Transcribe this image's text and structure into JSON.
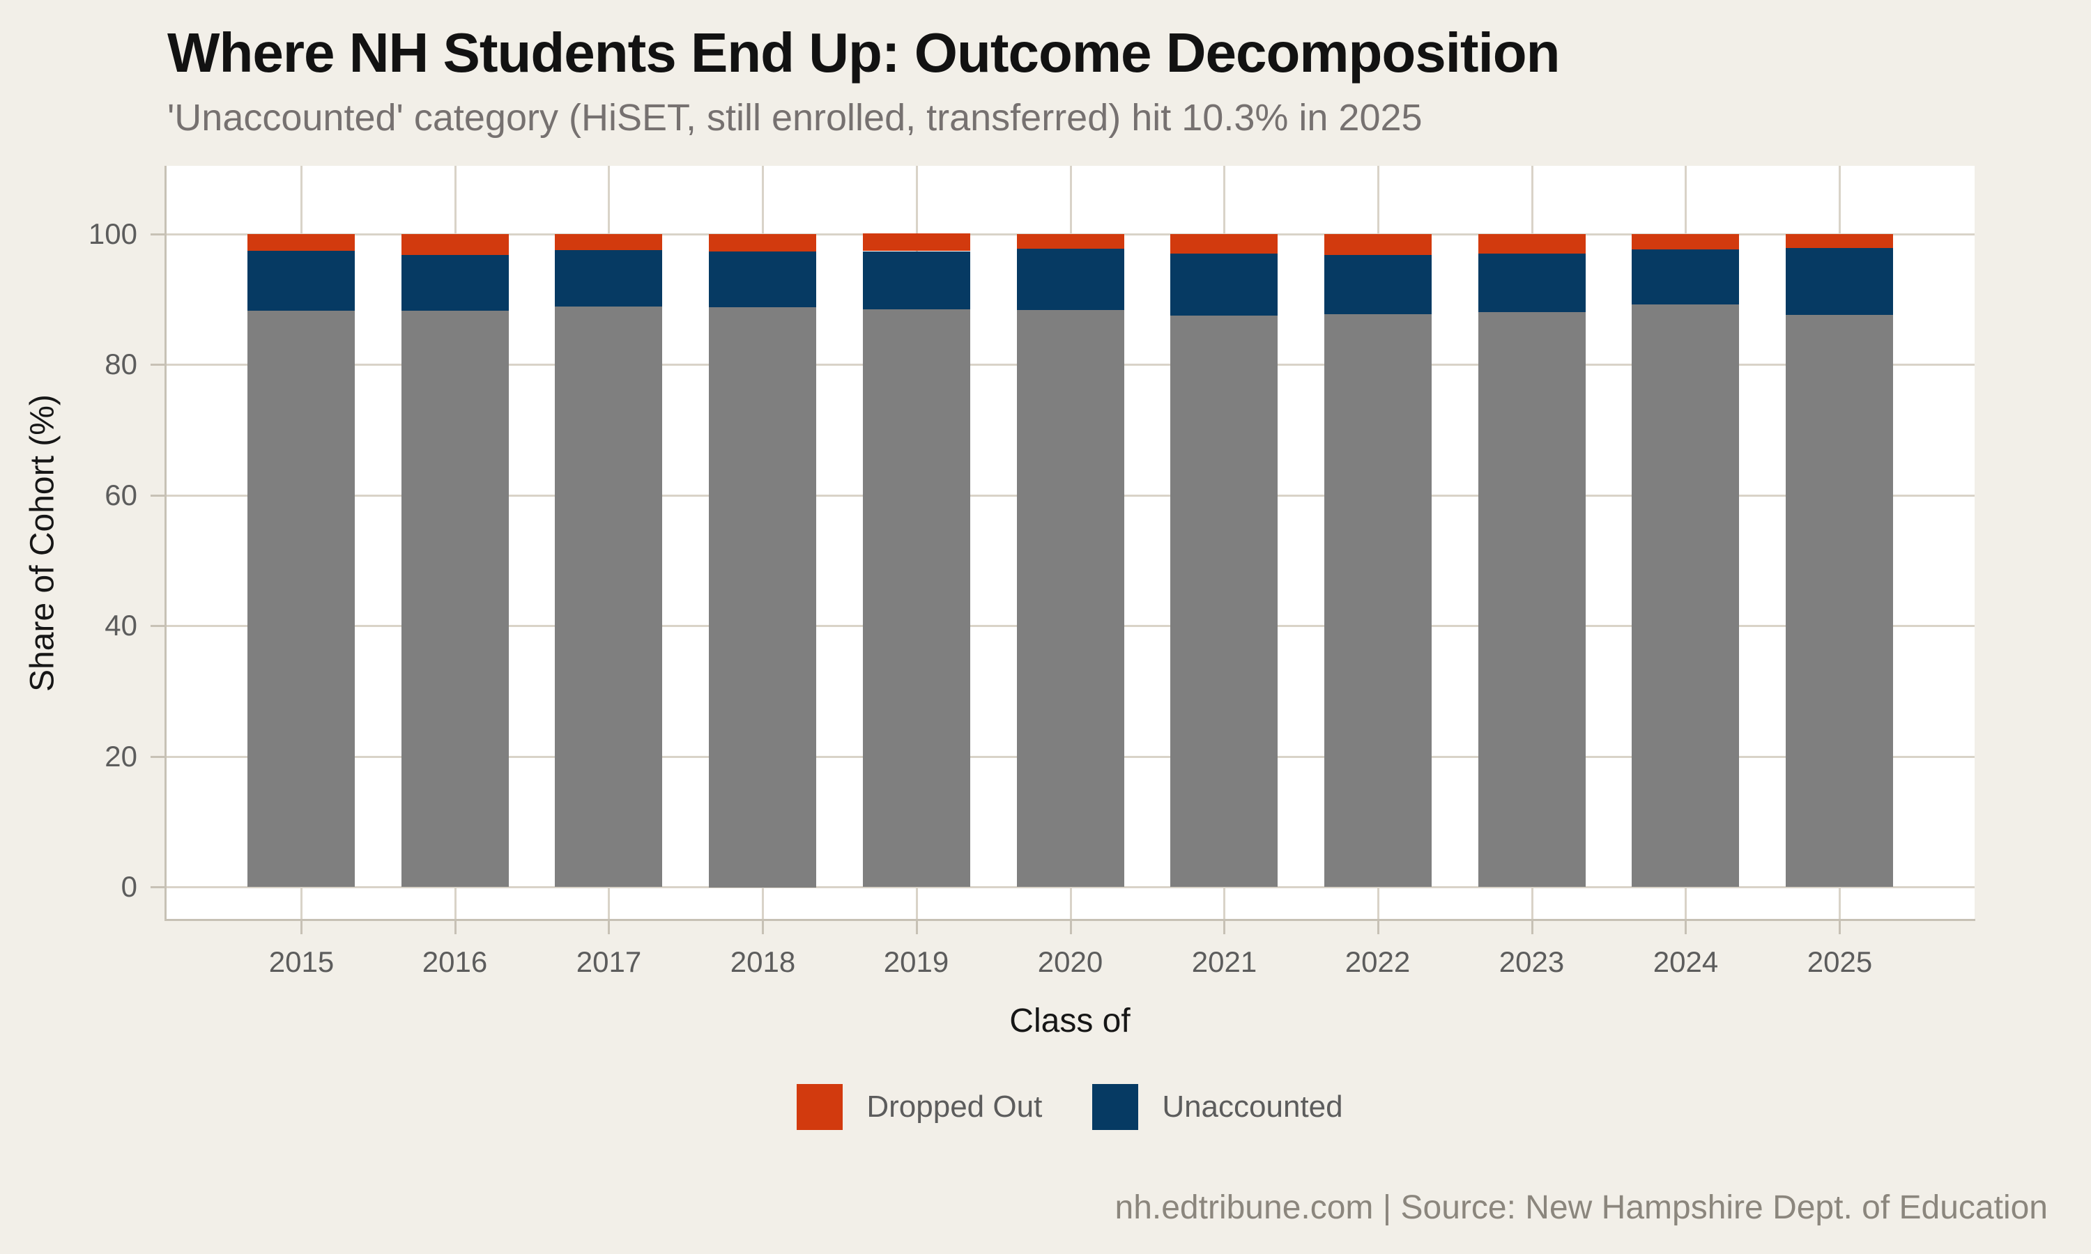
{
  "header": {
    "title": "Where NH Students End Up: Outcome Decomposition",
    "subtitle": "'Unaccounted' category (HiSET, still enrolled, transferred) hit 10.3% in 2025"
  },
  "chart_data": {
    "type": "bar",
    "stacked": true,
    "title": "Where NH Students End Up: Outcome Decomposition",
    "subtitle": "'Unaccounted' category (HiSET, still enrolled, transferred) hit 10.3% in 2025",
    "categories": [
      "2015",
      "2016",
      "2017",
      "2018",
      "2019",
      "2020",
      "2021",
      "2022",
      "2023",
      "2024",
      "2025"
    ],
    "series": [
      {
        "name": "",
        "in_legend": false,
        "color": "#7F7F7F",
        "values": [
          88.2,
          88.3,
          88.9,
          88.8,
          88.4,
          88.3,
          87.5,
          87.7,
          88.0,
          89.2,
          87.6
        ]
      },
      {
        "name": "Unaccounted",
        "in_legend": true,
        "color": "#063A63",
        "values": [
          9.2,
          8.5,
          8.6,
          8.5,
          8.9,
          9.5,
          9.5,
          9.1,
          9.0,
          8.5,
          10.3
        ]
      },
      {
        "name": "Dropped Out",
        "in_legend": true,
        "color": "#D23A0E",
        "values": [
          2.6,
          3.2,
          2.5,
          2.7,
          2.7,
          2.2,
          3.0,
          3.2,
          3.0,
          2.3,
          2.1
        ]
      }
    ],
    "stack_order": "bottom-to-top: gray (unlabeled), Unaccounted, Dropped Out",
    "xlabel": "Class of",
    "ylabel": "Share of Cohort (%)",
    "ylim": [
      0,
      100
    ],
    "yticks": [
      0,
      20,
      40,
      60,
      80,
      100
    ],
    "grid": true,
    "legend_position": "bottom"
  },
  "legend": {
    "items": [
      {
        "label": "Dropped Out",
        "color": "#D23A0E"
      },
      {
        "label": "Unaccounted",
        "color": "#063A63"
      }
    ]
  },
  "footer": {
    "text": "nh.edtribune.com | Source: New Hampshire Dept. of Education"
  },
  "colors": {
    "background": "#F2EFE8",
    "panel": "#FFFFFF",
    "gridline": "#D9D3C8",
    "axis": "#C7C1B5",
    "bar_gray": "#7F7F7F",
    "bar_navy": "#063A63",
    "bar_orange": "#D23A0E",
    "title_text": "#121212",
    "subtitle_text": "#767170",
    "tick_text": "#5C5C5C",
    "footer_text": "#8B867D"
  }
}
